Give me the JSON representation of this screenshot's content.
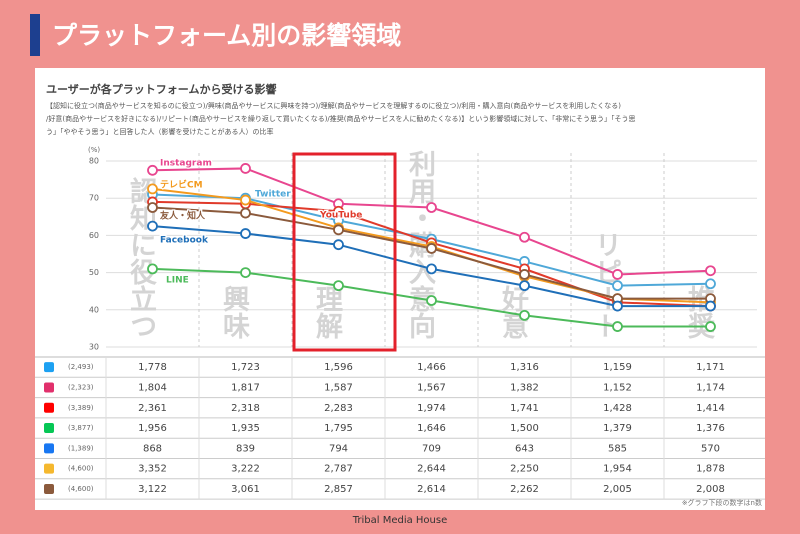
{
  "header": {
    "title": "プラットフォーム別の影響領域"
  },
  "chart_data": {
    "type": "line",
    "subtitle": "ユーザーが各プラットフォームから受ける影響",
    "description": [
      "【認知に役立つ(商品やサービスを知るのに役立つ)/興味(商品やサービスに興味を持つ)/理解(商品やサービスを理解するのに役立つ)/利用・購入意向(商品やサービスを利用したくなる)",
      "/好意(商品やサービスを好きになる)/リピート(商品やサービスを繰り返して買いたくなる)/推奨(商品やサービスを人に勧めたくなる)】という影響領域に対して、「非常にそう思う」「そう思",
      "う」「ややそう思う」と回答した人（影響を受けたことがある人）の比率"
    ],
    "y_unit": "(%)",
    "categories": [
      "認知に役立つ",
      "興味",
      "理解",
      "利用・購入意向",
      "好意",
      "リピート",
      "推奨"
    ],
    "ylim": [
      30,
      80
    ],
    "yticks": [
      30,
      40,
      50,
      60,
      70,
      80
    ],
    "grid": true,
    "series": [
      {
        "name": "Instagram",
        "color": "#e8468f",
        "values": [
          77.5,
          78,
          68.5,
          67.5,
          59.5,
          49.5,
          50.5
        ]
      },
      {
        "name": "Twitter",
        "color": "#4fa8d8",
        "values": [
          71,
          70,
          64,
          59,
          53,
          46.5,
          47
        ]
      },
      {
        "name": "YouTube",
        "color": "#e03a2a",
        "values": [
          69,
          68.5,
          66.5,
          58,
          51,
          42,
          41
        ]
      },
      {
        "name": "テレビCM",
        "color": "#f39a1e",
        "values": [
          72.5,
          69.5,
          62,
          57,
          49,
          43,
          42
        ]
      },
      {
        "name": "友人・知人",
        "color": "#8b5a3c",
        "values": [
          67.5,
          66,
          61.5,
          56.5,
          49.5,
          43,
          43
        ]
      },
      {
        "name": "Facebook",
        "color": "#1f6fb8",
        "values": [
          62.5,
          60.5,
          57.5,
          51,
          46.5,
          41,
          41
        ]
      },
      {
        "name": "LINE",
        "color": "#4cba5a",
        "values": [
          51,
          50,
          46.5,
          42.5,
          38.5,
          35.5,
          35.5
        ]
      }
    ]
  },
  "table": {
    "rows": [
      {
        "n": "(2,493)",
        "values": [
          "1,778",
          "1,723",
          "1,596",
          "1,466",
          "1,316",
          "1,159",
          "1,171"
        ]
      },
      {
        "n": "(2,323)",
        "values": [
          "1,804",
          "1,817",
          "1,587",
          "1,567",
          "1,382",
          "1,152",
          "1,174"
        ]
      },
      {
        "n": "(3,389)",
        "values": [
          "2,361",
          "2,318",
          "2,283",
          "1,974",
          "1,741",
          "1,428",
          "1,414"
        ]
      },
      {
        "n": "(3,877)",
        "values": [
          "1,956",
          "1,935",
          "1,795",
          "1,646",
          "1,500",
          "1,379",
          "1,376"
        ]
      },
      {
        "n": "(1,389)",
        "values": [
          "868",
          "839",
          "794",
          "709",
          "643",
          "585",
          "570"
        ]
      },
      {
        "n": "(4,600)",
        "values": [
          "3,352",
          "3,222",
          "2,787",
          "2,644",
          "2,250",
          "1,954",
          "1,878"
        ]
      },
      {
        "n": "(4,600)",
        "values": [
          "3,122",
          "3,061",
          "2,857",
          "2,614",
          "2,262",
          "2,005",
          "2,008"
        ]
      }
    ],
    "note": "※グラフ下段の数字はn数"
  },
  "footer": {
    "text": "Tribal Media House"
  }
}
